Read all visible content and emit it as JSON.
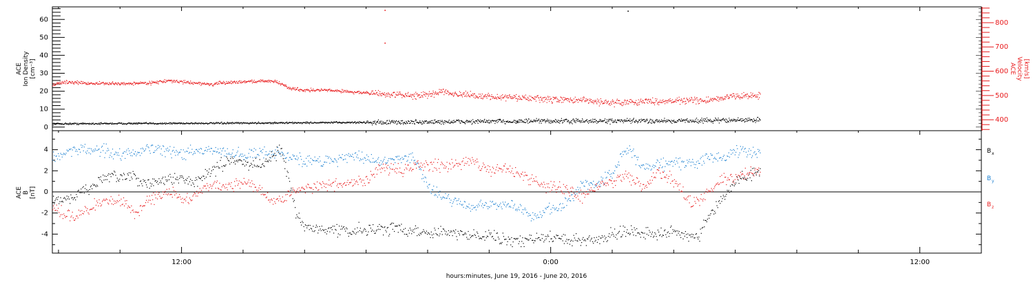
{
  "figure": {
    "xlabel": "hours:minutes, June 19, 2016 - June 20, 2016",
    "x_tick_labels": [
      "12:00",
      "0:00",
      "12:00"
    ],
    "x_tick_hours": [
      12,
      24,
      36
    ],
    "x_range_hours": [
      7.8,
      38.0
    ],
    "data_end_hour": 30.8
  },
  "colors": {
    "axis": "#000000",
    "black_series": "#000000",
    "red_series": "#e8191b",
    "blue_series": "#1a7fd0"
  },
  "chart_data": [
    {
      "type": "scatter",
      "left_axis": {
        "label_lines": [
          "ACE",
          "Ion Density",
          "[cm⁻³]"
        ],
        "ylim": [
          -2,
          67
        ],
        "tick_values": [
          0,
          10,
          20,
          30,
          40,
          50,
          60
        ],
        "tick_labels": [
          "0",
          "10",
          "20",
          "30",
          "40",
          "50",
          "60"
        ]
      },
      "right_axis": {
        "label_lines": [
          "ACE",
          "Velocity",
          "[km/s]"
        ],
        "ylim": [
          355,
          865
        ],
        "tick_values": [
          400,
          500,
          600,
          700,
          800
        ],
        "tick_labels": [
          "400",
          "500",
          "600",
          "700",
          "800"
        ]
      },
      "series": [
        {
          "color_key": "black_series",
          "axis": "left",
          "x_hours": [
            7.8,
            9,
            10,
            11,
            12,
            13,
            14,
            15,
            16,
            17,
            18,
            19,
            20,
            21,
            22,
            23,
            24,
            25,
            26,
            27,
            28,
            29,
            30,
            30.8
          ],
          "values": [
            1.8,
            1.9,
            2.0,
            2.0,
            2.1,
            2.1,
            2.2,
            2.3,
            2.4,
            2.5,
            2.6,
            2.6,
            2.8,
            3.0,
            3.1,
            3.2,
            3.3,
            3.3,
            3.3,
            3.4,
            3.5,
            3.6,
            3.8,
            4.0
          ]
        },
        {
          "color_key": "red_series",
          "axis": "right",
          "x_hours": [
            7.8,
            8.2,
            9,
            10,
            11,
            11.5,
            12,
            13,
            13.2,
            14,
            15,
            15.5,
            16,
            16.5,
            17,
            18,
            19,
            20,
            20.5,
            21,
            22,
            23,
            24,
            25,
            26,
            27,
            28,
            28.5,
            29,
            30,
            30.8
          ],
          "values": [
            545,
            555,
            550,
            548,
            552,
            560,
            556,
            545,
            550,
            557,
            560,
            530,
            522,
            522,
            520,
            510,
            502,
            500,
            520,
            503,
            495,
            490,
            483,
            480,
            470,
            475,
            478,
            480,
            477,
            498,
            500
          ]
        }
      ],
      "outlier_points": [
        {
          "x_hour": 18.6,
          "value_right": 850
        },
        {
          "x_hour": 18.6,
          "value_right": 715
        },
        {
          "x_hour": 26.5,
          "value_left": 64.5
        },
        {
          "x_hour": 22.9,
          "value_left": 2.9
        }
      ]
    },
    {
      "type": "scatter",
      "left_axis": {
        "label_lines": [
          "ACE",
          "B",
          "[nT]"
        ],
        "ylim": [
          -5.8,
          5.8
        ],
        "tick_values": [
          -4,
          -2,
          0,
          2,
          4
        ],
        "tick_labels": [
          "-4",
          "-2",
          "0",
          "2",
          "4"
        ]
      },
      "zero_line": true,
      "series": [
        {
          "name": "Bₓ",
          "color_key": "black_series",
          "x_hours": [
            7.8,
            8.5,
            9.3,
            10,
            11,
            11.7,
            12.5,
            13.5,
            14.5,
            15.2,
            15.5,
            15.7,
            16,
            16.5,
            17,
            17.5,
            18,
            19,
            20,
            21,
            21.8,
            22.5,
            23,
            23.8,
            24.5,
            25,
            25.5,
            26,
            26.5,
            27,
            27.5,
            28,
            28.8,
            29,
            29.5,
            30,
            30.8
          ],
          "values": [
            -1.0,
            -0.5,
            1.0,
            1.5,
            0.8,
            1.3,
            1.0,
            3.0,
            2.5,
            4.0,
            1.0,
            -2.0,
            -3.4,
            -3.5,
            -3.6,
            -3.8,
            -3.5,
            -3.5,
            -3.8,
            -4.0,
            -4.0,
            -4.5,
            -4.7,
            -4.3,
            -4.5,
            -4.6,
            -4.5,
            -4.0,
            -3.7,
            -3.8,
            -4.0,
            -3.8,
            -4.4,
            -3.0,
            -1.0,
            1.0,
            2.0
          ]
        },
        {
          "name": "Bᵧ",
          "color_key": "blue_series",
          "x_hours": [
            7.8,
            8.5,
            9.3,
            10,
            11,
            12,
            13,
            14,
            15,
            16,
            17,
            17.5,
            18.5,
            19.5,
            20,
            20.5,
            21,
            21.5,
            22,
            22.5,
            23,
            23.5,
            24,
            24.5,
            25,
            25.5,
            26,
            26.5,
            27,
            27.5,
            28,
            28.5,
            29,
            29.5,
            30,
            30.8
          ],
          "values": [
            3.2,
            4.0,
            4.0,
            3.6,
            4.0,
            3.7,
            3.9,
            3.5,
            3.8,
            2.9,
            3.0,
            3.5,
            2.8,
            3.5,
            0.5,
            -0.5,
            -1.0,
            -1.5,
            -1.2,
            -1.3,
            -1.5,
            -2.5,
            -1.5,
            -1.2,
            0.8,
            0.8,
            1.6,
            4.2,
            2.2,
            2.5,
            2.8,
            2.7,
            3.0,
            3.3,
            3.8,
            3.6
          ]
        },
        {
          "name": "Bₔ",
          "color_key": "red_series",
          "x_hours": [
            7.8,
            8.5,
            9.3,
            10,
            10.5,
            11,
            11.7,
            12,
            13,
            13.5,
            14,
            14.5,
            15,
            16,
            17,
            18,
            18.5,
            19,
            19.8,
            20.5,
            21,
            21.5,
            22,
            22.5,
            23,
            23.8,
            24.5,
            25,
            25.5,
            26,
            26.5,
            27,
            27.5,
            28,
            28.5,
            29,
            29.5,
            30,
            30.8
          ],
          "values": [
            -1.5,
            -2.5,
            -1.0,
            -0.8,
            -2.0,
            -0.5,
            0.0,
            -1.0,
            0.8,
            0.5,
            1.0,
            0.3,
            -1.0,
            0.5,
            0.6,
            1.0,
            2.5,
            2.0,
            2.5,
            2.5,
            2.8,
            3.0,
            2.0,
            2.2,
            1.8,
            0.5,
            0.2,
            -0.5,
            0.5,
            1.0,
            1.5,
            0.5,
            2.0,
            1.0,
            -1.0,
            -0.5,
            1.0,
            1.5,
            2.0
          ]
        }
      ],
      "legend": [
        {
          "label": "B",
          "sub": "x",
          "color_key": "black_series"
        },
        {
          "label": "B",
          "sub": "y",
          "color_key": "blue_series"
        },
        {
          "label": "B",
          "sub": "z",
          "color_key": "red_series"
        }
      ]
    }
  ]
}
